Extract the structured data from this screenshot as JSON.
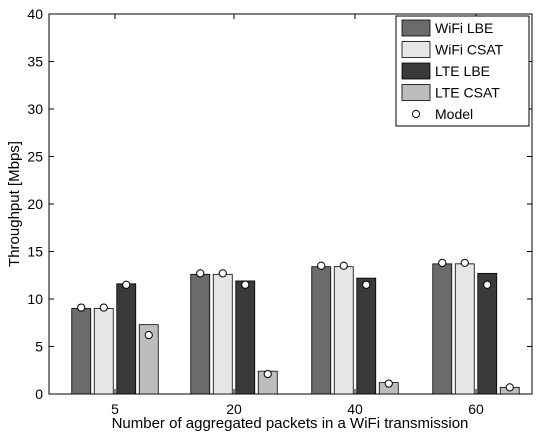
{
  "chart_data": {
    "type": "bar",
    "title": "",
    "xlabel": "Number of aggregated packets in a WiFi transmission",
    "ylabel": "Throughput [Mbps]",
    "ylim": [
      0,
      40
    ],
    "yticks": [
      0,
      5,
      10,
      15,
      20,
      25,
      30,
      35,
      40
    ],
    "categories": [
      "5",
      "20",
      "40",
      "60"
    ],
    "grid": false,
    "legend_position": "top-right",
    "series": [
      {
        "name": "WiFi LBE",
        "color": "#6b6b6b",
        "values": [
          9.0,
          12.6,
          13.4,
          13.7
        ]
      },
      {
        "name": "WiFi CSAT",
        "color": "#e6e6e6",
        "values": [
          9.0,
          12.6,
          13.4,
          13.7
        ]
      },
      {
        "name": "LTE LBE",
        "color": "#3a3a3a",
        "values": [
          11.6,
          11.9,
          12.2,
          12.7
        ]
      },
      {
        "name": "LTE CSAT",
        "color": "#bdbdbd",
        "values": [
          7.3,
          2.4,
          1.2,
          0.7
        ]
      }
    ],
    "model": {
      "name": "Model",
      "values": [
        [
          9.1,
          9.1,
          11.5,
          6.2
        ],
        [
          12.7,
          12.7,
          11.5,
          2.1
        ],
        [
          13.5,
          13.5,
          11.5,
          1.1
        ],
        [
          13.8,
          13.8,
          11.5,
          0.7
        ]
      ]
    }
  }
}
